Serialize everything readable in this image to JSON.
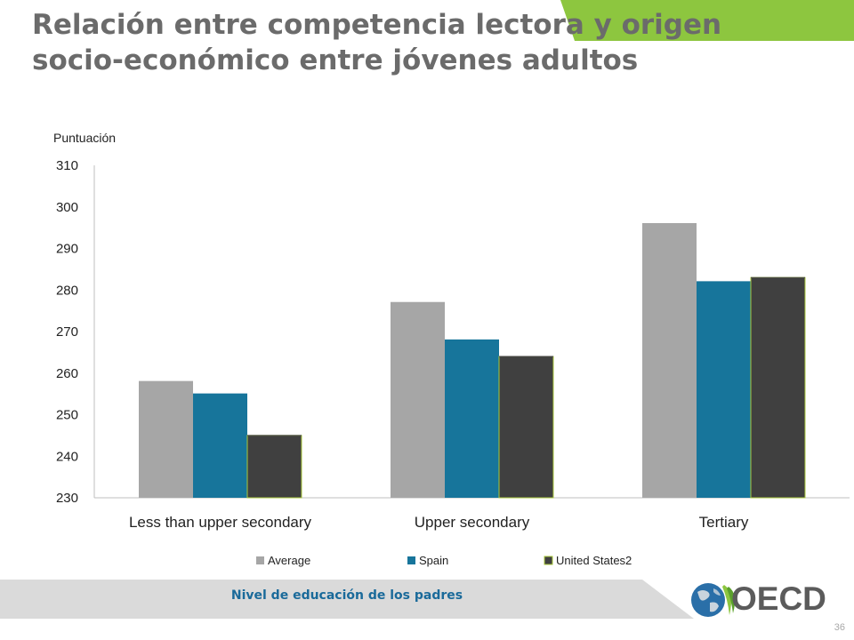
{
  "slide": {
    "title_line1": "Relación entre competencia lectora y origen",
    "title_line2": "socio-económico entre jóvenes adultos",
    "footer": "Nivel de educación de los padres",
    "logo_text": "OECD",
    "page_number": "36"
  },
  "colors": {
    "title": "#6b6b6b",
    "accent_green": "#8dc63f",
    "footer_band": "#dadada",
    "footer_text": "#1a6a9a"
  },
  "chart_data": {
    "type": "bar",
    "ylabel": "Puntuación",
    "xlabel": "",
    "ylim": [
      230,
      310
    ],
    "yticks": [
      "230",
      "240",
      "250",
      "260",
      "270",
      "280",
      "290",
      "300",
      "310"
    ],
    "grid": false,
    "legend_position": "bottom",
    "categories": [
      "Less than upper secondary",
      "Upper secondary",
      "Tertiary"
    ],
    "series": [
      {
        "name": "Average",
        "color": "#a6a6a6",
        "values": [
          258,
          277,
          296
        ]
      },
      {
        "name": "Spain",
        "color": "#17759b",
        "values": [
          255,
          268,
          282
        ]
      },
      {
        "name": "United States2",
        "color": "#404040",
        "values": [
          245,
          264,
          283
        ]
      }
    ]
  }
}
